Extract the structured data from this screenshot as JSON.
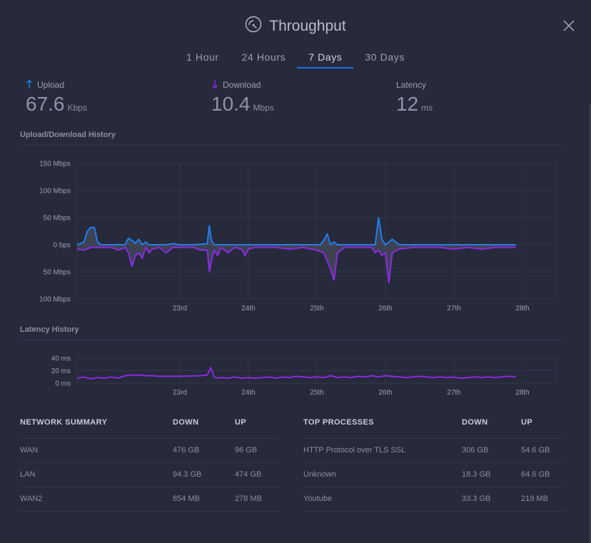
{
  "header": {
    "title": "Throughput"
  },
  "tabs": [
    {
      "label": "1 Hour",
      "active": false
    },
    {
      "label": "24 Hours",
      "active": false
    },
    {
      "label": "7 Days",
      "active": true
    },
    {
      "label": "30 Days",
      "active": false
    }
  ],
  "stats": {
    "upload": {
      "label": "Upload",
      "value": "67.6",
      "unit": "Kbps"
    },
    "download": {
      "label": "Download",
      "value": "10.4",
      "unit": "Mbps"
    },
    "latency": {
      "label": "Latency",
      "value": "12",
      "unit": "ms"
    }
  },
  "colors": {
    "upload": "#1f7ef0",
    "download": "#8a2be2",
    "accent": "#1f6fe8"
  },
  "sections": {
    "history_title": "Upload/Download History",
    "latency_title": "Latency History"
  },
  "chart_data": [
    {
      "type": "area",
      "title": "Upload/Download History",
      "y_tick_labels": [
        "150 Mbps",
        "100 Mbps",
        "50 Mbps",
        "0 bps",
        "50 Mbps",
        "100 Mbps"
      ],
      "y_tick_values": [
        150,
        100,
        50,
        0,
        -50,
        -100
      ],
      "ylim": [
        -100,
        150
      ],
      "x_tick_labels": [
        "23rd",
        "24th",
        "25th",
        "26th",
        "27th",
        "28th"
      ],
      "x_tick_values": [
        1,
        2,
        3,
        4,
        5,
        6
      ],
      "xlim": [
        -0.5,
        6.5
      ],
      "grid": true,
      "series": [
        {
          "name": "Upload",
          "color": "#1f7ef0",
          "x": [
            -0.5,
            -0.4,
            -0.35,
            -0.3,
            -0.25,
            -0.2,
            -0.15,
            -0.1,
            0.0,
            0.1,
            0.2,
            0.25,
            0.3,
            0.35,
            0.4,
            0.45,
            0.5,
            0.55,
            0.6,
            0.7,
            0.8,
            0.9,
            1.0,
            1.2,
            1.4,
            1.43,
            1.46,
            1.5,
            1.6,
            1.7,
            1.8,
            1.9,
            2.0,
            2.2,
            2.4,
            2.6,
            2.8,
            3.0,
            3.05,
            3.1,
            3.15,
            3.2,
            3.25,
            3.3,
            3.4,
            3.6,
            3.8,
            3.85,
            3.9,
            3.95,
            4.0,
            4.05,
            4.1,
            4.2,
            4.4,
            4.6,
            4.8,
            5.0,
            5.2,
            5.4,
            5.6,
            5.8,
            5.9
          ],
          "y": [
            0,
            5,
            25,
            32,
            32,
            5,
            0,
            0,
            0,
            0,
            0,
            12,
            8,
            3,
            10,
            0,
            5,
            0,
            0,
            0,
            0,
            2,
            0,
            0,
            2,
            35,
            8,
            0,
            0,
            0,
            0,
            0,
            0,
            0,
            0,
            0,
            0,
            0,
            0,
            8,
            20,
            0,
            5,
            0,
            0,
            0,
            0,
            0,
            50,
            10,
            0,
            5,
            10,
            0,
            0,
            0,
            0,
            0,
            0,
            0,
            0,
            0,
            0
          ]
        },
        {
          "name": "Download",
          "color": "#8a2be2",
          "x": [
            -0.5,
            -0.4,
            -0.3,
            -0.2,
            -0.1,
            0.0,
            0.1,
            0.2,
            0.25,
            0.3,
            0.35,
            0.4,
            0.45,
            0.5,
            0.55,
            0.6,
            0.7,
            0.8,
            0.9,
            1.0,
            1.1,
            1.2,
            1.3,
            1.4,
            1.43,
            1.46,
            1.5,
            1.55,
            1.6,
            1.7,
            1.8,
            1.9,
            1.95,
            2.0,
            2.1,
            2.2,
            2.4,
            2.6,
            2.8,
            3.0,
            3.1,
            3.15,
            3.2,
            3.25,
            3.3,
            3.35,
            3.4,
            3.6,
            3.8,
            3.85,
            3.9,
            3.95,
            4.0,
            4.05,
            4.1,
            4.2,
            4.4,
            4.6,
            4.8,
            5.0,
            5.2,
            5.4,
            5.6,
            5.8,
            5.9
          ],
          "y": [
            -8,
            -10,
            -5,
            -5,
            -5,
            -5,
            -10,
            -5,
            -15,
            -40,
            -20,
            -15,
            -25,
            -5,
            -15,
            -8,
            -5,
            -15,
            -5,
            -5,
            -5,
            -5,
            -10,
            -10,
            -50,
            -30,
            -10,
            -20,
            -5,
            -15,
            -5,
            -8,
            -20,
            -8,
            -5,
            -5,
            -5,
            -8,
            -5,
            -10,
            -15,
            -30,
            -45,
            -65,
            -15,
            -10,
            -5,
            -5,
            -5,
            -15,
            -10,
            -20,
            -15,
            -70,
            -15,
            -8,
            -5,
            -5,
            -5,
            -8,
            -5,
            -8,
            -5,
            -5,
            -5
          ]
        }
      ]
    },
    {
      "type": "line",
      "title": "Latency History",
      "y_tick_labels": [
        "40 ms",
        "20 ms",
        "0 ms"
      ],
      "y_tick_values": [
        40,
        20,
        0
      ],
      "ylim": [
        0,
        40
      ],
      "x_tick_labels": [
        "23rd",
        "24th",
        "25th",
        "26th",
        "27th",
        "28th"
      ],
      "x_tick_values": [
        1,
        2,
        3,
        4,
        5,
        6
      ],
      "xlim": [
        -0.5,
        6.5
      ],
      "grid": true,
      "series": [
        {
          "name": "Latency",
          "color": "#8a2be2",
          "x": [
            -0.5,
            -0.4,
            -0.3,
            -0.2,
            -0.1,
            0.0,
            0.1,
            0.2,
            0.3,
            0.4,
            0.5,
            0.6,
            0.7,
            0.8,
            0.9,
            1.0,
            1.3,
            1.4,
            1.45,
            1.5,
            1.55,
            1.6,
            1.7,
            1.8,
            1.9,
            2.0,
            2.1,
            2.2,
            2.3,
            2.4,
            2.5,
            2.6,
            2.7,
            2.8,
            2.9,
            3.0,
            3.1,
            3.2,
            3.3,
            3.4,
            3.5,
            3.6,
            3.7,
            3.8,
            3.9,
            4.0,
            4.1,
            4.2,
            4.3,
            4.4,
            4.5,
            4.6,
            4.7,
            4.8,
            4.9,
            5.0,
            5.1,
            5.2,
            5.3,
            5.4,
            5.5,
            5.6,
            5.7,
            5.8,
            5.9
          ],
          "y": [
            8,
            10,
            7,
            9,
            8,
            10,
            8,
            12,
            13,
            13,
            12,
            12,
            11,
            11,
            11,
            11,
            12,
            13,
            25,
            10,
            8,
            9,
            8,
            10,
            8,
            9,
            8,
            9,
            10,
            8,
            10,
            9,
            11,
            10,
            9,
            10,
            9,
            12,
            9,
            10,
            9,
            11,
            10,
            12,
            10,
            12,
            11,
            10,
            9,
            10,
            11,
            10,
            9,
            10,
            9,
            10,
            8,
            9,
            10,
            9,
            10,
            9,
            10,
            11,
            10
          ]
        }
      ]
    }
  ],
  "network_summary": {
    "headers": [
      "NETWORK SUMMARY",
      "DOWN",
      "UP"
    ],
    "rows": [
      [
        "WAN",
        "476 GB",
        "96 GB"
      ],
      [
        "LAN",
        "94.3 GB",
        "474 GB"
      ],
      [
        "WAN2",
        "854 MB",
        "278 MB"
      ]
    ]
  },
  "top_processes": {
    "headers": [
      "TOP PROCESSES",
      "DOWN",
      "UP"
    ],
    "rows": [
      [
        "HTTP Protocol over TLS SSL",
        "306 GB",
        "54.6 GB"
      ],
      [
        "Unknown",
        "18.3 GB",
        "64.6 GB"
      ],
      [
        "Youtube",
        "33.3 GB",
        "219 MB"
      ]
    ]
  }
}
